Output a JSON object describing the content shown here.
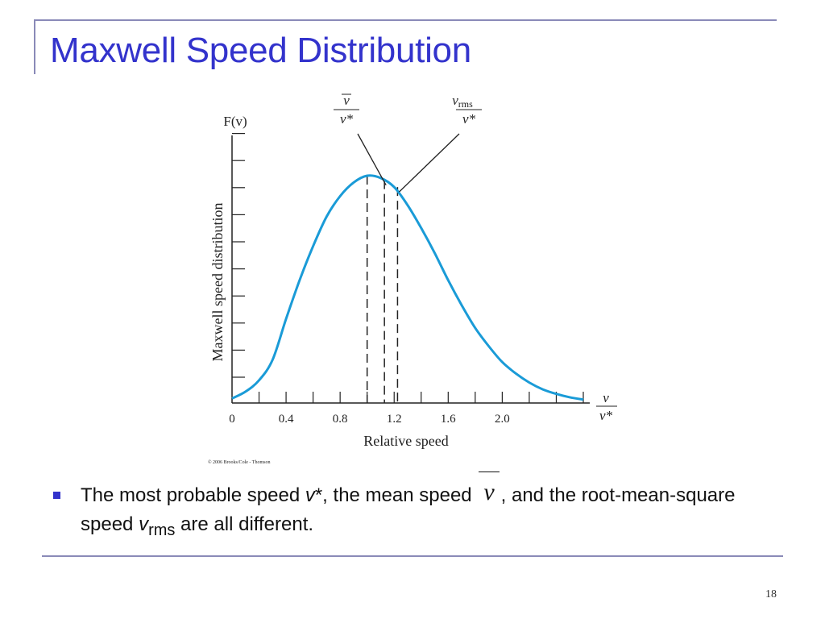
{
  "slide": {
    "title": "Maxwell Speed Distribution",
    "page_number": "18",
    "bullet": {
      "p1": "The most probable speed ",
      "vstar": "v",
      "p2": "*, the mean speed ",
      "vbar": "v",
      "p3": ", and the root-mean-square speed ",
      "vrms": "v",
      "rms_sub": "rms",
      "p4": " are all different."
    },
    "accent_color": "#3333cc"
  },
  "chart_data": {
    "type": "line",
    "title": "",
    "ylabel": "Maxwell speed distribution",
    "y_axis_symbol": "F(v)",
    "xlabel": "Relative speed",
    "x_axis_end_label": {
      "numerator": "v",
      "denominator": "v*"
    },
    "x_ticks": [
      0,
      0.4,
      0.8,
      1.2,
      1.6,
      2.0
    ],
    "x_tick_labels": [
      "0",
      "0.4",
      "0.8",
      "1.2",
      "1.6",
      "2.0"
    ],
    "xlim": [
      0,
      2.6
    ],
    "ylim": [
      0,
      1.0
    ],
    "grid": false,
    "credit": "© 2006 Brooks/Cole - Thomson",
    "curve_color": "#1a9bd7",
    "series": [
      {
        "x": [
          0,
          0.1,
          0.2,
          0.3,
          0.4,
          0.5,
          0.6,
          0.7,
          0.8,
          0.9,
          1.0,
          1.1,
          1.2,
          1.3,
          1.4,
          1.5,
          1.6,
          1.7,
          1.8,
          1.9,
          2.0,
          2.1,
          2.2,
          2.3,
          2.4,
          2.5,
          2.6
        ],
        "y": [
          0.02,
          0.05,
          0.1,
          0.19,
          0.37,
          0.54,
          0.69,
          0.82,
          0.91,
          0.97,
          1.0,
          0.99,
          0.95,
          0.87,
          0.77,
          0.66,
          0.54,
          0.43,
          0.33,
          0.25,
          0.18,
          0.13,
          0.09,
          0.06,
          0.04,
          0.025,
          0.015
        ]
      }
    ],
    "markers": [
      {
        "x": 1.0,
        "y": 1.0,
        "label": "v*"
      },
      {
        "x": 1.128,
        "y": 0.98,
        "label": "v̄"
      },
      {
        "x": 1.225,
        "y": 0.95,
        "label": "vrms"
      }
    ],
    "annotations": [
      {
        "id": "mean",
        "numerator": "v",
        "numerator_overline": true,
        "numerator_sub": "",
        "denominator": "v*",
        "points_to_marker": 1
      },
      {
        "id": "rms",
        "numerator": "v",
        "numerator_overline": false,
        "numerator_sub": "rms",
        "denominator": "v*",
        "points_to_marker": 2
      }
    ]
  }
}
